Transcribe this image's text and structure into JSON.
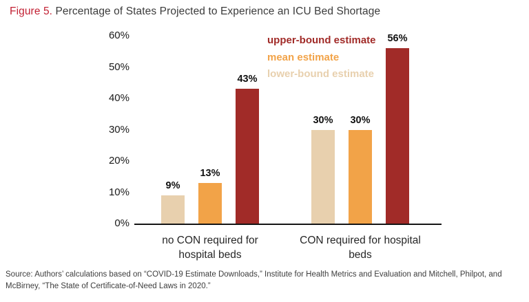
{
  "title": {
    "figure_label": "Figure 5.",
    "text": " Percentage of States Projected to Experience an ICU Bed Shortage"
  },
  "legend": [
    {
      "label": "upper-bound estimate",
      "color": "#a12b28"
    },
    {
      "label": "mean estimate",
      "color": "#f2a348"
    },
    {
      "label": "lower-bound estimate",
      "color": "#e8d0ae"
    }
  ],
  "chart_data": {
    "type": "bar",
    "categories": [
      "no CON required for hospital beds",
      "CON required for hospital beds"
    ],
    "series": [
      {
        "name": "lower-bound estimate",
        "color": "#e8d0ae",
        "values": [
          9,
          30
        ]
      },
      {
        "name": "mean estimate",
        "color": "#f2a348",
        "values": [
          13,
          30
        ]
      },
      {
        "name": "upper-bound estimate",
        "color": "#a12b28",
        "values": [
          43,
          56
        ]
      }
    ],
    "title": "Figure 5. Percentage of States Projected to Experience an ICU Bed Shortage",
    "xlabel": "",
    "ylabel": "",
    "ylim": [
      0,
      60
    ],
    "yticks": [
      "0%",
      "10%",
      "20%",
      "30%",
      "40%",
      "50%",
      "60%"
    ],
    "value_suffix": "%",
    "grid": false,
    "legend_position": "top-center"
  },
  "source": "Source: Authors’ calculations based on “COVID-19 Estimate Downloads,” Institute for Health Metrics and Evaluation and Mitchell, Philpot, and McBirney, “The State of Certificate-of-Need Laws in 2020.”"
}
